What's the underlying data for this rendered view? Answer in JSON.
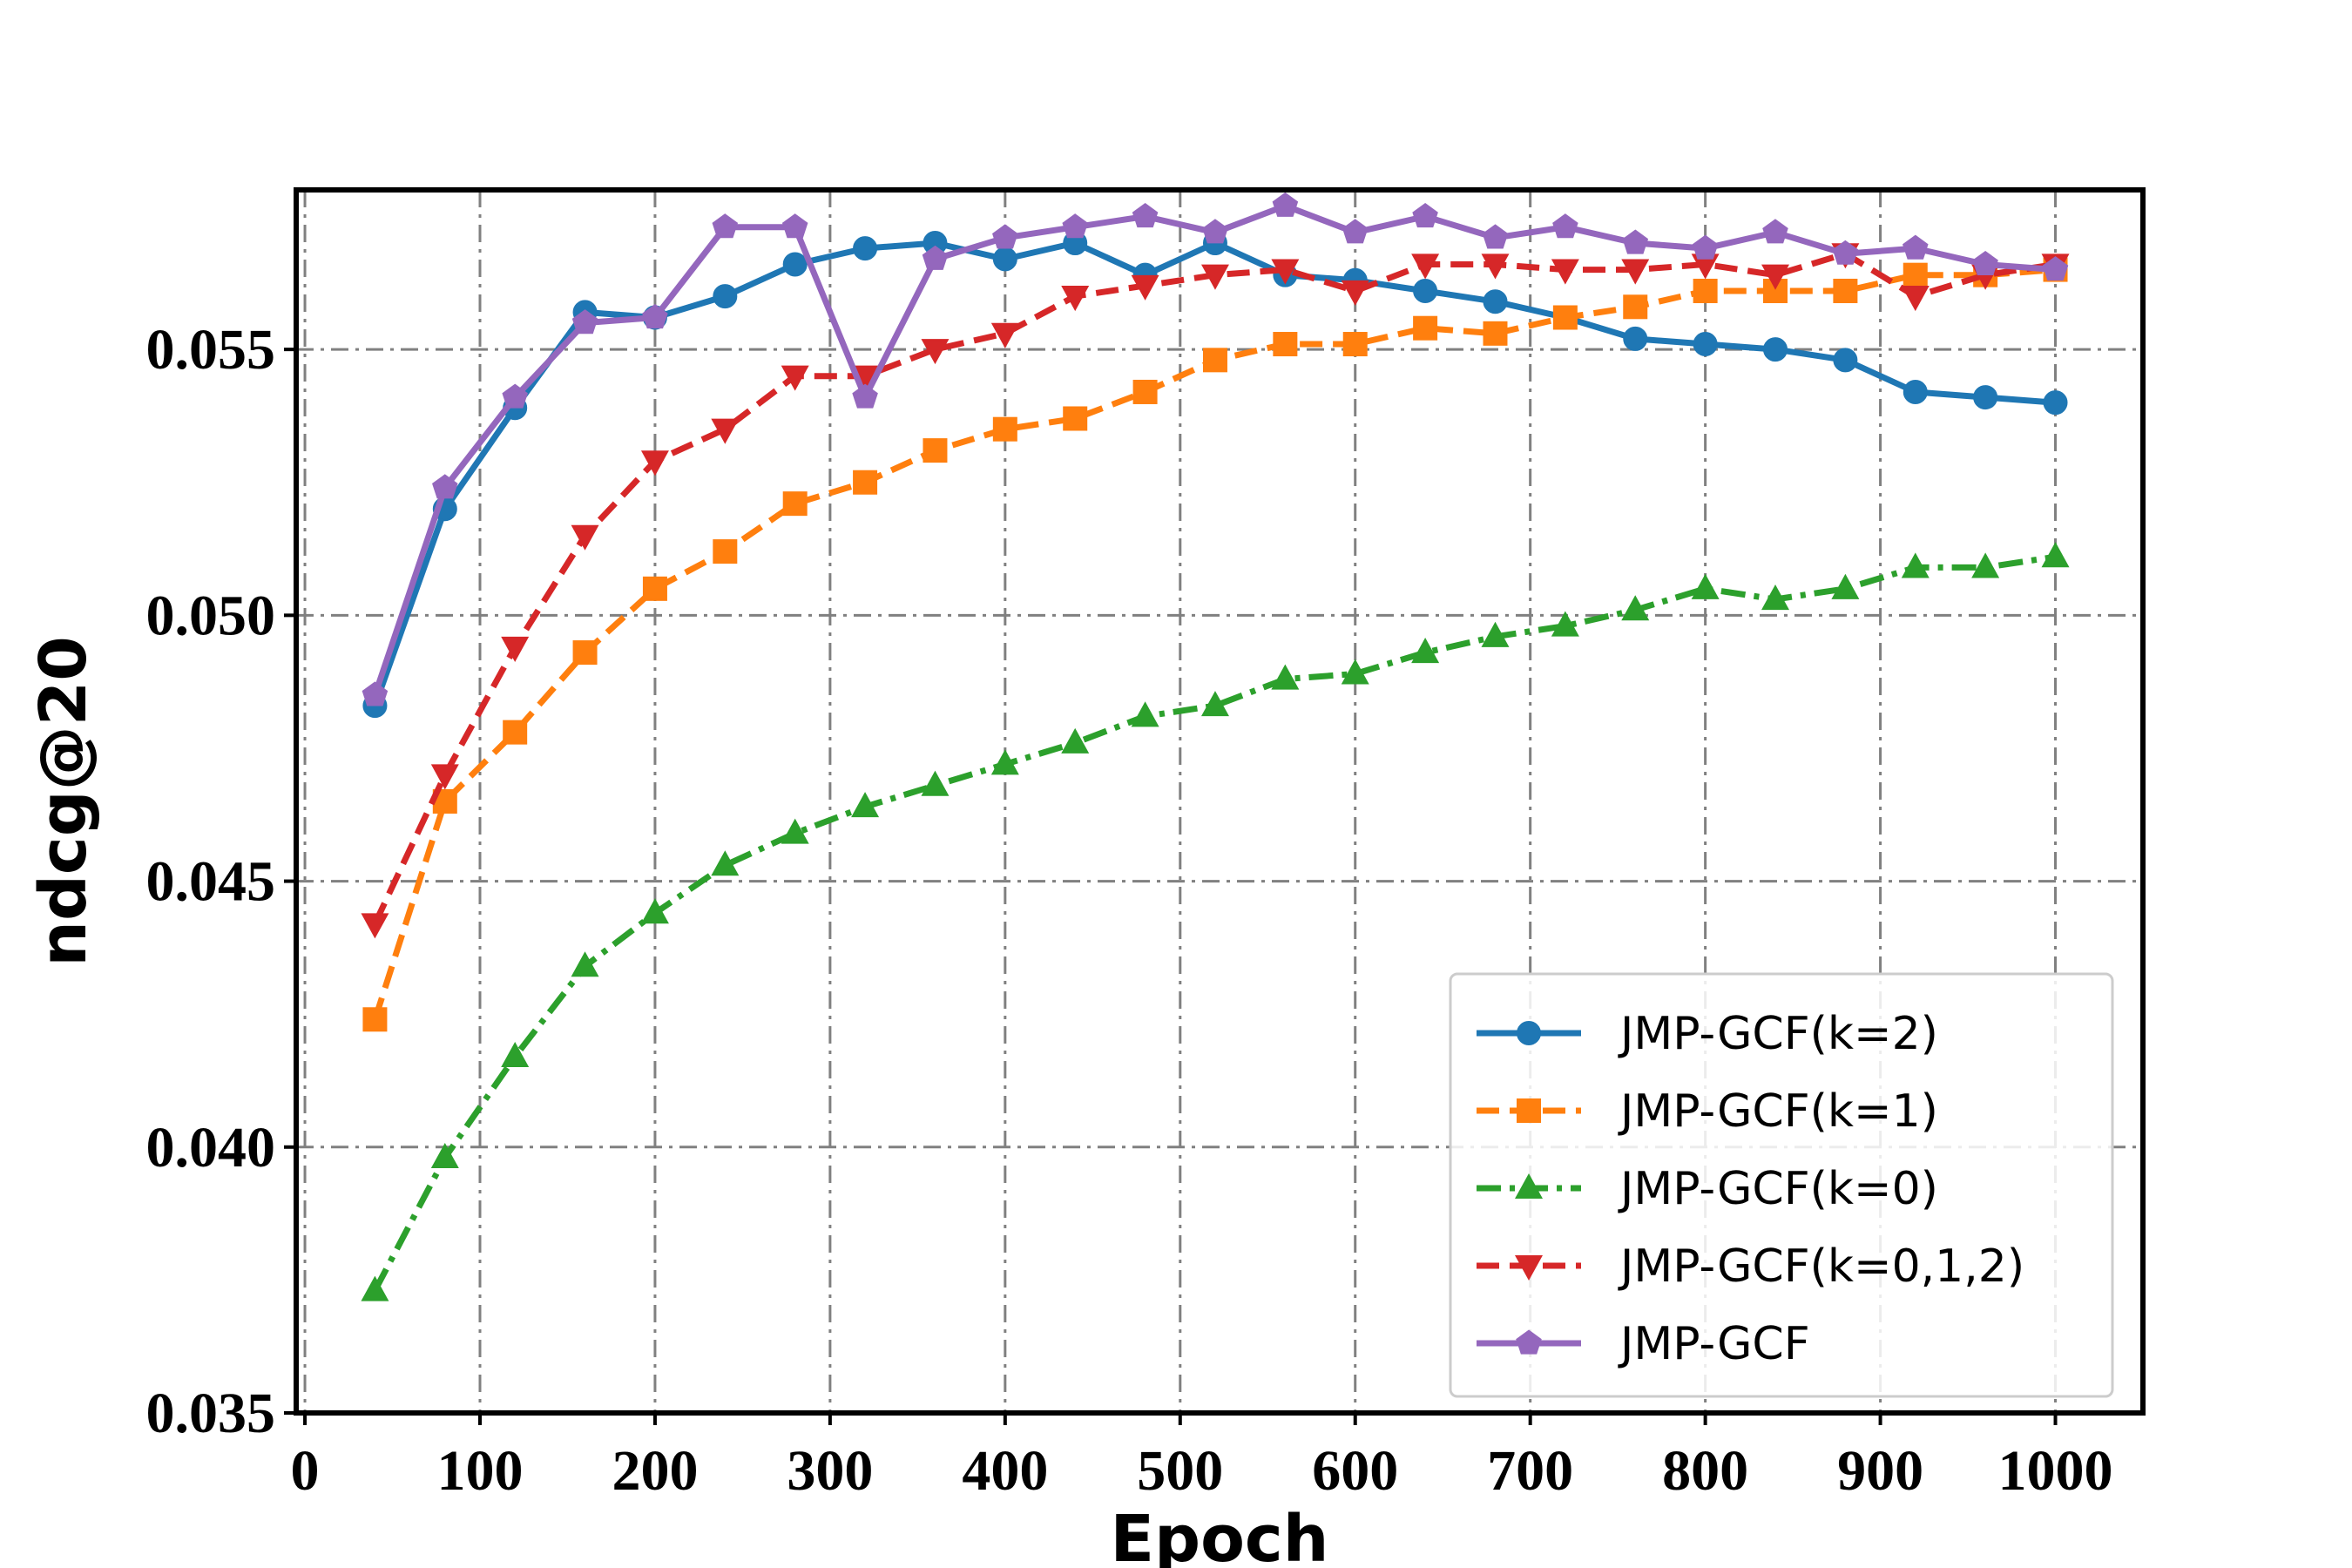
{
  "chart_data": {
    "type": "line",
    "xlabel": "Epoch",
    "ylabel": "ndcg@20",
    "xlim": [
      -5,
      1050
    ],
    "ylim": [
      0.035,
      0.058
    ],
    "xticks": [
      0,
      100,
      200,
      300,
      400,
      500,
      600,
      700,
      800,
      900,
      1000
    ],
    "xtick_labels": [
      "0",
      "100",
      "200",
      "300",
      "400",
      "500",
      "600",
      "700",
      "800",
      "900",
      "1000"
    ],
    "yticks": [
      0.035,
      0.04,
      0.045,
      0.05,
      0.055
    ],
    "ytick_labels": [
      "0.035",
      "0.040",
      "0.045",
      "0.050",
      "0.055"
    ],
    "grid": true,
    "legend_position": "bottom-right",
    "x": [
      40,
      80,
      120,
      160,
      200,
      240,
      280,
      320,
      360,
      400,
      440,
      480,
      520,
      560,
      600,
      640,
      680,
      720,
      760,
      800,
      840,
      880,
      920,
      960,
      1000
    ],
    "series": [
      {
        "name": "JMP-GCF(k=2)",
        "color": "#1f77b4",
        "linestyle": "solid",
        "marker": "circle",
        "values": [
          0.0483,
          0.052,
          0.0539,
          0.0557,
          0.0556,
          0.056,
          0.0566,
          0.0569,
          0.057,
          0.0567,
          0.057,
          0.0564,
          0.057,
          0.0564,
          0.0563,
          0.0561,
          0.0559,
          0.0556,
          0.0552,
          0.0551,
          0.055,
          0.0548,
          0.0542,
          0.0541,
          0.054
        ]
      },
      {
        "name": "JMP-GCF(k=1)",
        "color": "#ff7f0e",
        "linestyle": "dashed",
        "marker": "square",
        "values": [
          0.0424,
          0.0465,
          0.0478,
          0.0493,
          0.0505,
          0.0512,
          0.0521,
          0.0525,
          0.0531,
          0.0535,
          0.0537,
          0.0542,
          0.0548,
          0.0551,
          0.0551,
          0.0554,
          0.0553,
          0.0556,
          0.0558,
          0.0561,
          0.0561,
          0.0561,
          0.0564,
          0.0564,
          0.0565
        ]
      },
      {
        "name": "JMP-GCF(k=0)",
        "color": "#2ca02c",
        "linestyle": "dashdot",
        "marker": "triangle-up",
        "values": [
          0.0373,
          0.0398,
          0.0417,
          0.0434,
          0.0444,
          0.0453,
          0.0459,
          0.0464,
          0.0468,
          0.0472,
          0.0476,
          0.0481,
          0.0483,
          0.0488,
          0.0489,
          0.0493,
          0.0496,
          0.0498,
          0.0501,
          0.0505,
          0.0503,
          0.0505,
          0.0509,
          0.0509,
          0.0511
        ]
      },
      {
        "name": "JMP-GCF(k=0,1,2)",
        "color": "#d62728",
        "linestyle": "dashed",
        "marker": "triangle-down",
        "values": [
          0.0442,
          0.047,
          0.0494,
          0.0515,
          0.0529,
          0.0535,
          0.0545,
          0.0545,
          0.055,
          0.0553,
          0.056,
          0.0562,
          0.0564,
          0.0565,
          0.0561,
          0.0566,
          0.0566,
          0.0565,
          0.0565,
          0.0566,
          0.0564,
          0.0568,
          0.056,
          0.0564,
          0.0566
        ]
      },
      {
        "name": "JMP-GCF",
        "color": "#9467bd",
        "linestyle": "solid",
        "marker": "pentagon",
        "values": [
          0.0485,
          0.0524,
          0.0541,
          0.0555,
          0.0556,
          0.0573,
          0.0573,
          0.0541,
          0.0567,
          0.0571,
          0.0573,
          0.0575,
          0.0572,
          0.0577,
          0.0572,
          0.0575,
          0.0571,
          0.0573,
          0.057,
          0.0569,
          0.0572,
          0.0568,
          0.0569,
          0.0566,
          0.0565
        ]
      }
    ]
  }
}
